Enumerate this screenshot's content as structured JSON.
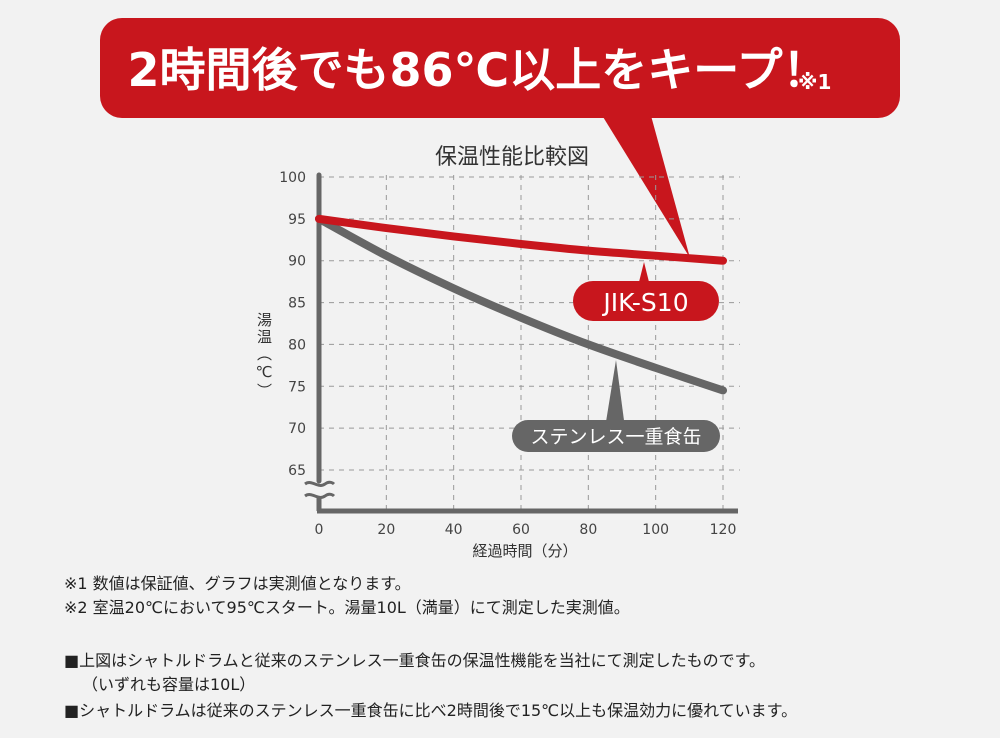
{
  "callout": {
    "headline": "2時間後でも86℃以上をキープ！",
    "footnote_ref": "※1",
    "color": "#c8161d"
  },
  "chart_data": {
    "type": "line",
    "title": "保温性能比較図",
    "xlabel": "経過時間（分）",
    "ylabel": "湯温（℃）",
    "x": [
      0,
      20,
      40,
      60,
      80,
      100,
      120
    ],
    "x_ticks": [
      "0",
      "20",
      "40",
      "60",
      "80",
      "100",
      "120"
    ],
    "y_ticks": [
      "100",
      "95",
      "90",
      "85",
      "80",
      "75",
      "70",
      "65"
    ],
    "xlim": [
      0,
      120
    ],
    "ylim": [
      65,
      100
    ],
    "axis_break": true,
    "grid": true,
    "series": [
      {
        "name": "JIK-S10",
        "color": "#c8161d",
        "values": [
          95,
          93.9,
          92.9,
          92.0,
          91.2,
          90.6,
          90
        ]
      },
      {
        "name": "ステンレス一重食缶",
        "color": "#666666",
        "values": [
          95,
          90.6,
          86.7,
          83.2,
          80.0,
          77.2,
          74.5
        ]
      }
    ]
  },
  "notes": {
    "note1": "※1 数値は保証値、グラフは実測値となります。",
    "note2": "※2 室温20℃において95℃スタート。湯量10L（満量）にて測定した実測値。",
    "line1": "■上図はシャトルドラムと従来のステンレス一重食缶の保温性機能を当社にて測定したものです。",
    "line2": "（いずれも容量は10L）",
    "line3": "■シャトルドラムは従来のステンレス一重食缶に比べ2時間後で15℃以上も保温効力に優れています。"
  }
}
